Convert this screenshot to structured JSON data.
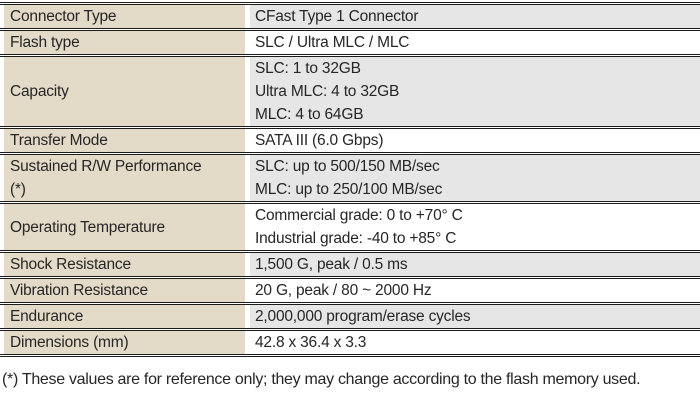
{
  "colors": {
    "label_column_bg": "#e3dac8",
    "shaded_value_bg": "#e6e6e6",
    "unshaded_value_bg": "#ffffff",
    "rule": "#1b1b1b",
    "text": "#262626"
  },
  "table": {
    "rows": [
      {
        "label": "Connector Type",
        "value": "CFast Type 1 Connector",
        "shaded": true
      },
      {
        "label": "Flash type",
        "value": "SLC / Ultra MLC / MLC",
        "shaded": false
      },
      {
        "label": "Capacity",
        "value": "SLC: 1 to 32GB\nUltra MLC: 4 to 32GB\nMLC: 4 to 64GB",
        "shaded": true
      },
      {
        "label": "Transfer Mode",
        "value": "SATA III (6.0 Gbps)",
        "shaded": false
      },
      {
        "label": "Sustained R/W Performance\n(*)",
        "value": "SLC: up to 500/150 MB/sec\nMLC: up to 250/100 MB/sec",
        "shaded": true
      },
      {
        "label": "Operating Temperature",
        "value": "Commercial grade: 0 to +70° C\nIndustrial grade: -40 to +85° C",
        "shaded": false
      },
      {
        "label": "Shock Resistance",
        "value": "1,500 G, peak / 0.5 ms",
        "shaded": true
      },
      {
        "label": "Vibration Resistance",
        "value": "20 G, peak / 80 ~ 2000 Hz",
        "shaded": false
      },
      {
        "label": "Endurance",
        "value": "2,000,000 program/erase cycles",
        "shaded": true
      },
      {
        "label": "Dimensions (mm)",
        "value": "42.8 x 36.4 x 3.3",
        "shaded": false
      }
    ]
  },
  "footnote": "(*) These values are for reference only; they may change according to the flash memory used."
}
